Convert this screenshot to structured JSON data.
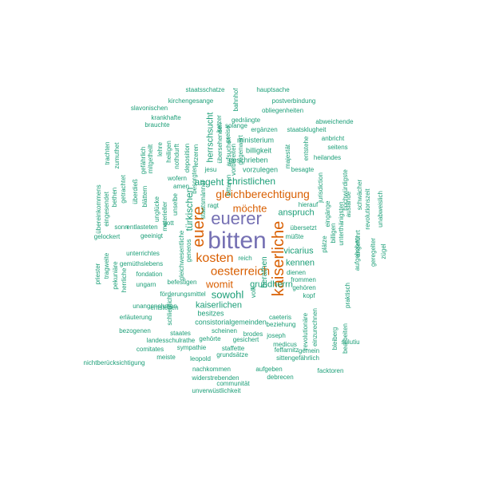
{
  "colors": {
    "purple": "#7570b3",
    "orange": "#d95f02",
    "teal": "#1b9e77"
  },
  "words": [
    {
      "t": "bitten",
      "c": "purple"
    },
    {
      "t": "euerer",
      "c": "purple"
    },
    {
      "t": "euere",
      "c": "orange"
    },
    {
      "t": "kaiserliche",
      "c": "orange"
    },
    {
      "t": "kosten",
      "c": "orange"
    },
    {
      "t": "oesterreich",
      "c": "orange"
    },
    {
      "t": "gleichberechtigung",
      "c": "orange"
    },
    {
      "t": "möchte",
      "c": "orange"
    },
    {
      "t": "womit",
      "c": "orange"
    },
    {
      "t": "sowohl",
      "c": "teal"
    },
    {
      "t": "christlichen",
      "c": "teal"
    },
    {
      "t": "angeht",
      "c": "teal"
    },
    {
      "t": "türkischen",
      "c": "teal"
    },
    {
      "t": "kaiserlichen",
      "c": "teal"
    },
    {
      "t": "vicarius",
      "c": "teal"
    },
    {
      "t": "anspruch",
      "c": "teal"
    },
    {
      "t": "grundherrn",
      "c": "teal"
    },
    {
      "t": "kennen",
      "c": "teal"
    },
    {
      "t": "herrschsucht",
      "c": "teal"
    },
    {
      "t": "berathen",
      "c": "teal"
    },
    {
      "t": "besitzes",
      "c": "teal"
    },
    {
      "t": "consistorialgemeinden",
      "c": "teal"
    },
    {
      "t": "vorzulegen",
      "c": "teal"
    },
    {
      "t": "geschrieben",
      "c": "teal"
    },
    {
      "t": "billigkeit",
      "c": "teal"
    },
    {
      "t": "ministerium",
      "c": "teal"
    },
    {
      "t": "staatsklugheit",
      "c": "teal"
    },
    {
      "t": "ergänzen",
      "c": "teal"
    },
    {
      "t": "gedrängte",
      "c": "teal"
    },
    {
      "t": "solange",
      "c": "teal"
    },
    {
      "t": "obliegenheiten",
      "c": "teal"
    },
    {
      "t": "postverbindung",
      "c": "teal"
    },
    {
      "t": "hauptsache",
      "c": "teal"
    },
    {
      "t": "staatsschatze",
      "c": "teal"
    },
    {
      "t": "kirchengesange",
      "c": "teal"
    },
    {
      "t": "slavonischen",
      "c": "teal"
    },
    {
      "t": "krankhafte",
      "c": "teal"
    },
    {
      "t": "brauchte",
      "c": "teal"
    },
    {
      "t": "abweichende",
      "c": "teal"
    },
    {
      "t": "anbricht",
      "c": "teal"
    },
    {
      "t": "seitens",
      "c": "teal"
    },
    {
      "t": "heilandes",
      "c": "teal"
    },
    {
      "t": "besagte",
      "c": "teal"
    },
    {
      "t": "hierauf",
      "c": "teal"
    },
    {
      "t": "übersetzt",
      "c": "teal"
    },
    {
      "t": "müßte",
      "c": "teal"
    },
    {
      "t": "dienen",
      "c": "teal"
    },
    {
      "t": "frommen",
      "c": "teal"
    },
    {
      "t": "gehören",
      "c": "teal"
    },
    {
      "t": "kopf",
      "c": "teal"
    },
    {
      "t": "wofern",
      "c": "teal"
    },
    {
      "t": "amen",
      "c": "teal"
    },
    {
      "t": "jesu",
      "c": "teal"
    },
    {
      "t": "ragt",
      "c": "teal"
    },
    {
      "t": "gott",
      "c": "teal"
    },
    {
      "t": "reich",
      "c": "teal"
    },
    {
      "t": "volk",
      "c": "teal"
    },
    {
      "t": "unterrichtes",
      "c": "teal"
    },
    {
      "t": "gemüthslebens",
      "c": "teal"
    },
    {
      "t": "fondation",
      "c": "teal"
    },
    {
      "t": "befestigen",
      "c": "teal"
    },
    {
      "t": "ungarn",
      "c": "teal"
    },
    {
      "t": "förderungsmittel",
      "c": "teal"
    },
    {
      "t": "unangenehmen",
      "c": "teal"
    },
    {
      "t": "erläuterung",
      "c": "teal"
    },
    {
      "t": "bezogenen",
      "c": "teal"
    },
    {
      "t": "staates",
      "c": "teal"
    },
    {
      "t": "landesschulrathe",
      "c": "teal"
    },
    {
      "t": "comitates",
      "c": "teal"
    },
    {
      "t": "sympathie",
      "c": "teal"
    },
    {
      "t": "gehörte",
      "c": "teal"
    },
    {
      "t": "gesichert",
      "c": "teal"
    },
    {
      "t": "meiste",
      "c": "teal"
    },
    {
      "t": "leopold",
      "c": "teal"
    },
    {
      "t": "staffette",
      "c": "teal"
    },
    {
      "t": "grundsätze",
      "c": "teal"
    },
    {
      "t": "nichtberücksichtigung",
      "c": "teal"
    },
    {
      "t": "nachkommen",
      "c": "teal"
    },
    {
      "t": "widerstrebenden",
      "c": "teal"
    },
    {
      "t": "communität",
      "c": "teal"
    },
    {
      "t": "unverwüstlichkeit",
      "c": "teal"
    },
    {
      "t": "aufgeben",
      "c": "teal"
    },
    {
      "t": "debrecen",
      "c": "teal"
    },
    {
      "t": "facktoren",
      "c": "teal"
    },
    {
      "t": "sittengefährlich",
      "c": "teal"
    },
    {
      "t": "feffarnitz",
      "c": "teal"
    },
    {
      "t": "gemein",
      "c": "teal"
    },
    {
      "t": "medicus",
      "c": "teal"
    },
    {
      "t": "brodes",
      "c": "teal"
    },
    {
      "t": "joseph",
      "c": "teal"
    },
    {
      "t": "scheinen",
      "c": "teal"
    },
    {
      "t": "beziehung",
      "c": "teal"
    },
    {
      "t": "caeteris",
      "c": "teal"
    },
    {
      "t": "sulutiu",
      "c": "teal"
    },
    {
      "t": "entstehen",
      "c": "teal"
    },
    {
      "t": "geeinigt",
      "c": "teal"
    },
    {
      "t": "entlasteten",
      "c": "teal"
    },
    {
      "t": "sonn",
      "c": "teal"
    },
    {
      "t": "gelockert",
      "c": "teal"
    },
    {
      "t": "bitteren",
      "c": "teal"
    },
    {
      "t": "staatsmänner",
      "c": "teal"
    },
    {
      "t": "preise",
      "c": "teal"
    },
    {
      "t": "bahnhof",
      "c": "teal"
    },
    {
      "t": "ketzer",
      "c": "teal"
    },
    {
      "t": "heiligen",
      "c": "teal"
    },
    {
      "t": "lehre",
      "c": "teal"
    },
    {
      "t": "mitgetheilt",
      "c": "teal"
    },
    {
      "t": "gefährlich",
      "c": "teal"
    },
    {
      "t": "zumuthet",
      "c": "teal"
    },
    {
      "t": "trachten",
      "c": "teal"
    },
    {
      "t": "nothdurft",
      "c": "teal"
    },
    {
      "t": "letzeren",
      "c": "teal"
    },
    {
      "t": "deposition",
      "c": "teal"
    },
    {
      "t": "besorgten",
      "c": "teal"
    },
    {
      "t": "unselbe",
      "c": "teal"
    },
    {
      "t": "materieller",
      "c": "teal"
    },
    {
      "t": "unglücke",
      "c": "teal"
    },
    {
      "t": "blättern",
      "c": "teal"
    },
    {
      "t": "überdieß",
      "c": "teal"
    },
    {
      "t": "getrachtet",
      "c": "teal"
    },
    {
      "t": "bethen",
      "c": "teal"
    },
    {
      "t": "eingesendet",
      "c": "teal"
    },
    {
      "t": "übereinkommens",
      "c": "teal"
    },
    {
      "t": "übersehenden",
      "c": "teal"
    },
    {
      "t": "aufsuchen",
      "c": "teal"
    },
    {
      "t": "vorbereiten",
      "c": "teal"
    },
    {
      "t": "majestät",
      "c": "teal"
    },
    {
      "t": "entstehe",
      "c": "teal"
    },
    {
      "t": "plätze",
      "c": "teal"
    },
    {
      "t": "billigen",
      "c": "teal"
    },
    {
      "t": "unterthänigsten",
      "c": "teal"
    },
    {
      "t": "aufgehoben",
      "c": "teal"
    },
    {
      "t": "jurisdiction",
      "c": "teal"
    },
    {
      "t": "hochwürdigste",
      "c": "teal"
    },
    {
      "t": "eingänge",
      "c": "teal"
    },
    {
      "t": "auslande",
      "c": "teal"
    },
    {
      "t": "schwächer",
      "c": "teal"
    },
    {
      "t": "angeführt",
      "c": "teal"
    },
    {
      "t": "revolutionszeit",
      "c": "teal"
    },
    {
      "t": "unabweislich",
      "c": "teal"
    },
    {
      "t": "geregelter",
      "c": "teal"
    },
    {
      "t": "zügel",
      "c": "teal"
    },
    {
      "t": "praktisch",
      "c": "teal"
    },
    {
      "t": "revolutionäre",
      "c": "teal"
    },
    {
      "t": "einzurechnen",
      "c": "teal"
    },
    {
      "t": "bleiberg",
      "c": "teal"
    },
    {
      "t": "bearbeiten",
      "c": "teal"
    },
    {
      "t": "priester",
      "c": "teal"
    },
    {
      "t": "tragweite",
      "c": "teal"
    },
    {
      "t": "pekuniäre",
      "c": "teal"
    },
    {
      "t": "herrliche",
      "c": "teal"
    },
    {
      "t": "gleichwesentliche",
      "c": "teal"
    },
    {
      "t": "generos",
      "c": "teal"
    },
    {
      "t": "schließlich",
      "c": "teal"
    },
    {
      "t": "gegenwart",
      "c": "teal"
    },
    {
      "t": "machte",
      "c": "teal"
    },
    {
      "t": "altzu",
      "c": "teal"
    },
    {
      "t": "weinen",
      "c": "teal"
    }
  ]
}
